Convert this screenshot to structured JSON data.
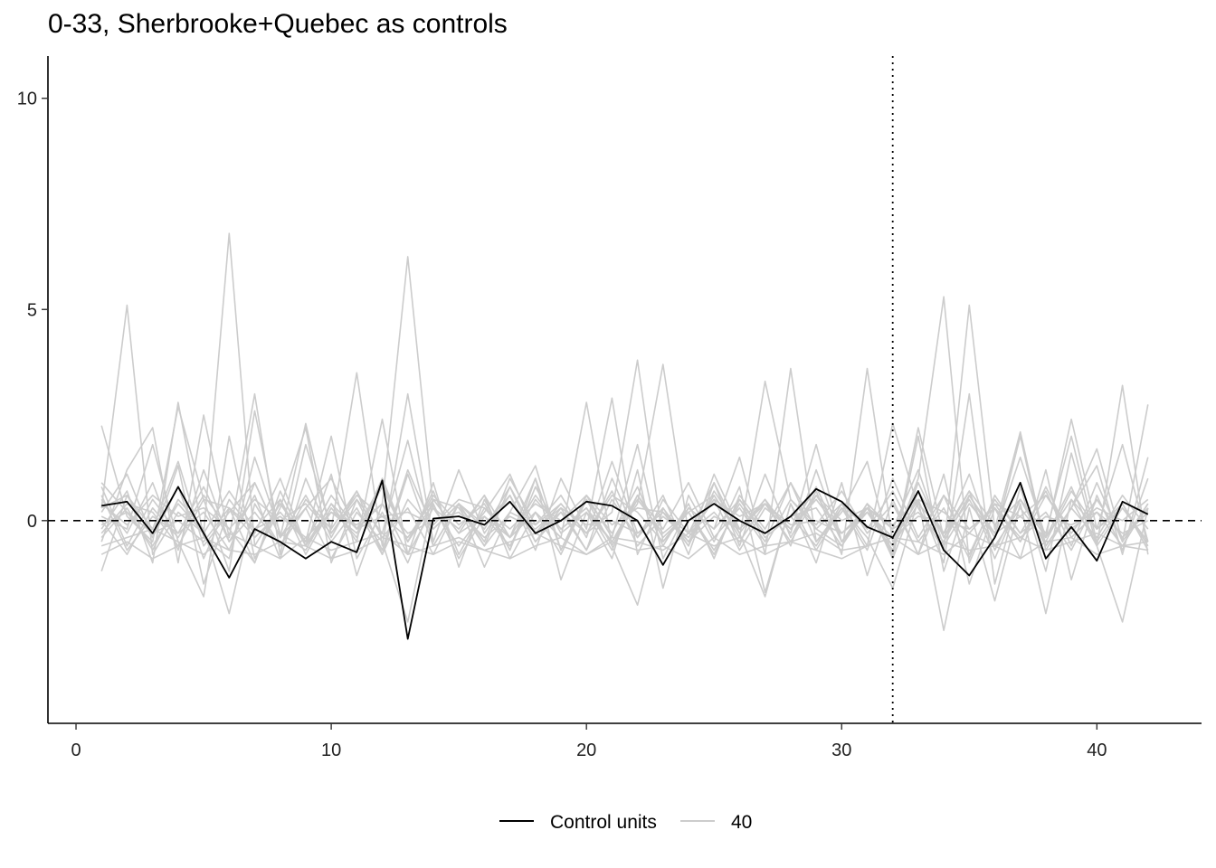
{
  "chart_data": {
    "type": "line",
    "title": "0-33, Sherbrooke+Quebec as controls",
    "xlabel": "",
    "ylabel": "",
    "xlim": [
      -1.1,
      44.1
    ],
    "ylim": [
      -4.8,
      11
    ],
    "x_ticks": [
      0,
      10,
      20,
      30,
      40
    ],
    "y_ticks": [
      0,
      5,
      10
    ],
    "reference_lines": {
      "horizontal_dashed_y": 0,
      "vertical_dotted_x": 32
    },
    "grid": false,
    "legend": {
      "position": "bottom",
      "entries": [
        {
          "label": "Control units",
          "color": "#000000"
        },
        {
          "label": "40",
          "color": "#cccccc"
        }
      ]
    },
    "x": [
      1,
      2,
      3,
      4,
      5,
      6,
      7,
      8,
      9,
      10,
      11,
      12,
      13,
      14,
      15,
      16,
      17,
      18,
      19,
      20,
      21,
      22,
      23,
      24,
      25,
      26,
      27,
      28,
      29,
      30,
      31,
      32,
      33,
      34,
      35,
      36,
      37,
      38,
      39,
      40,
      41,
      42
    ],
    "series": [
      {
        "name": "Control units",
        "color": "#000000",
        "values": [
          0.35,
          0.45,
          -0.3,
          0.8,
          -0.3,
          -1.35,
          -0.2,
          -0.5,
          -0.9,
          -0.5,
          -0.75,
          0.95,
          -2.8,
          0.05,
          0.1,
          -0.1,
          0.45,
          -0.3,
          0.0,
          0.45,
          0.35,
          0.0,
          -1.05,
          0.0,
          0.4,
          0.0,
          -0.3,
          0.1,
          0.75,
          0.45,
          -0.15,
          -0.4,
          0.7,
          -0.7,
          -1.3,
          -0.4,
          0.9,
          -0.9,
          -0.15,
          -0.95,
          0.45,
          0.15
        ]
      },
      {
        "color": "#cccccc",
        "values": [
          2.25,
          0.1,
          -0.5,
          2.7,
          0.5,
          -1.2,
          2.6,
          -0.4,
          0.3,
          1.0,
          -0.2,
          0.4,
          6.25,
          0.3,
          -0.6,
          0.2,
          1.1,
          -0.3,
          0.4,
          -0.3,
          0.2,
          3.8,
          -0.5,
          0.2,
          0.6,
          -0.4,
          3.3,
          0.5,
          -0.2,
          0.4,
          -0.6,
          2.3,
          0.3,
          -0.7,
          5.1,
          -0.2,
          2.1,
          -0.6,
          0.3,
          1.7,
          -0.5,
          2.75
        ]
      },
      {
        "color": "#cccccc",
        "values": [
          0.3,
          5.1,
          -0.8,
          0.2,
          -0.3,
          6.8,
          -0.6,
          0.4,
          -0.5,
          2.0,
          -0.9,
          0.2,
          -1.0,
          0.5,
          -0.3,
          0.1,
          -0.4,
          0.6,
          -0.2,
          0.3,
          -0.5,
          0.4,
          3.7,
          -0.3,
          0.2,
          -0.5,
          0.4,
          -0.2,
          0.5,
          -0.3,
          0.3,
          -0.6,
          1.0,
          5.3,
          -1.0,
          0.4,
          -0.5,
          0.6,
          -0.3,
          0.5,
          -0.4,
          0.3
        ]
      },
      {
        "color": "#cccccc",
        "values": [
          -0.5,
          1.2,
          2.2,
          -1.0,
          2.5,
          -0.4,
          3.0,
          -0.8,
          1.8,
          -0.2,
          3.5,
          -0.6,
          3.0,
          -0.5,
          1.2,
          -0.3,
          0.6,
          -0.7,
          1.0,
          -0.2,
          2.9,
          -0.8,
          0.5,
          -0.3,
          0.9,
          -0.6,
          1.1,
          -0.4,
          0.7,
          -0.8,
          3.6,
          -0.5,
          0.5,
          -1.0,
          3.0,
          -1.5,
          0.8,
          -1.2,
          1.6,
          -0.6,
          3.2,
          -0.8
        ]
      },
      {
        "color": "#cccccc",
        "values": [
          0.8,
          -0.6,
          0.5,
          -0.3,
          0.2,
          -0.7,
          0.9,
          -0.4,
          0.6,
          -0.5,
          0.3,
          -0.8,
          0.5,
          -0.2,
          0.4,
          -0.6,
          0.8,
          -0.3,
          0.2,
          -0.7,
          0.5,
          -0.4,
          0.3,
          -0.6,
          0.7,
          -0.2,
          0.4,
          -0.5,
          0.6,
          -0.3,
          0.2,
          -0.7,
          0.9,
          -0.4,
          0.5,
          -0.6,
          0.3,
          -0.5,
          0.7,
          -0.2,
          0.4,
          -0.6
        ]
      },
      {
        "color": "#cccccc",
        "values": [
          -1.2,
          0.6,
          -0.4,
          1.3,
          -1.5,
          0.3,
          -1.0,
          0.7,
          -0.6,
          1.1,
          -1.3,
          0.4,
          -0.8,
          0.9,
          -1.1,
          0.5,
          -0.7,
          1.0,
          -1.4,
          0.2,
          -0.9,
          1.2,
          -1.6,
          0.6,
          -0.5,
          0.8,
          -1.7,
          0.4,
          -1.0,
          0.9,
          -1.3,
          0.5,
          -0.8,
          1.1,
          -1.5,
          0.3,
          -0.9,
          1.2,
          -1.4,
          0.6,
          -0.7,
          1.0
        ]
      },
      {
        "color": "#cccccc",
        "values": [
          0.1,
          -0.2,
          1.8,
          -0.5,
          -1.8,
          2.0,
          -0.9,
          0.3,
          2.2,
          -1.0,
          0.5,
          -0.3,
          1.9,
          -0.6,
          0.4,
          -1.1,
          0.2,
          1.3,
          -0.7,
          0.6,
          -0.4,
          1.8,
          -0.9,
          0.3,
          -0.2,
          1.5,
          -0.8,
          3.6,
          -0.5,
          0.2,
          1.4,
          -0.9,
          2.0,
          -1.2,
          0.6,
          -0.4,
          2.0,
          -0.7,
          0.3,
          1.3,
          -0.8,
          1.5
        ]
      },
      {
        "color": "#cccccc",
        "values": [
          -0.6,
          -0.4,
          -0.2,
          -0.5,
          -0.8,
          -0.3,
          -0.6,
          -0.9,
          -0.4,
          -0.7,
          -0.5,
          -0.3,
          -0.8,
          -0.6,
          -0.4,
          -0.7,
          -0.5,
          -0.3,
          -0.6,
          -0.8,
          -0.4,
          -0.5,
          -0.7,
          -0.3,
          -0.6,
          -0.4,
          -0.8,
          -0.5,
          -0.3,
          -0.7,
          -0.6,
          -0.4,
          -0.5,
          -0.8,
          -0.3,
          -0.6,
          -0.4,
          -0.7,
          -0.5,
          -0.3,
          -0.6,
          -0.5
        ]
      },
      {
        "color": "#cccccc",
        "values": [
          0.5,
          -0.3,
          0.9,
          -0.7,
          1.2,
          -0.5,
          0.6,
          -0.9,
          1.0,
          -0.4,
          0.7,
          -0.8,
          1.1,
          -0.6,
          0.4,
          -0.2,
          0.8,
          -0.5,
          0.3,
          -0.7,
          1.0,
          -0.4,
          0.6,
          -0.8,
          0.9,
          -0.3,
          0.5,
          -0.6,
          1.2,
          -0.5,
          0.4,
          -0.9,
          0.7,
          -0.3,
          1.1,
          -0.7,
          0.5,
          -0.4,
          0.8,
          -0.6,
          0.3,
          -0.5
        ]
      },
      {
        "color": "#cccccc",
        "values": [
          -0.2,
          0.7,
          -1.0,
          2.8,
          -0.4,
          -0.9,
          1.5,
          -0.3,
          -0.7,
          0.4,
          -0.5,
          2.4,
          -0.8,
          0.3,
          -0.2,
          0.6,
          -0.9,
          0.2,
          -0.4,
          2.8,
          -0.6,
          0.5,
          -0.3,
          0.2,
          -0.7,
          0.4,
          -0.5,
          0.9,
          -0.2,
          -0.6,
          0.3,
          -0.8,
          2.2,
          -0.4,
          0.7,
          -0.9,
          0.5,
          -0.3,
          2.0,
          -0.5,
          0.4,
          -0.7
        ]
      },
      {
        "color": "#cccccc",
        "values": [
          0.0,
          -0.8,
          0.3,
          -0.4,
          0.6,
          -0.2,
          -1.0,
          0.5,
          -0.6,
          0.2,
          -0.3,
          0.8,
          -0.5,
          0.4,
          -0.9,
          0.1,
          -0.6,
          0.5,
          -0.2,
          0.3,
          -0.7,
          0.6,
          -0.4,
          0.2,
          -0.8,
          0.5,
          -0.3,
          0.1,
          -0.6,
          0.4,
          -0.2,
          0.7,
          -0.5,
          0.3,
          -0.9,
          0.6,
          -0.3,
          0.2,
          -0.7,
          0.5,
          -0.4,
          0.2
        ]
      },
      {
        "color": "#cccccc",
        "values": [
          0.9,
          0.2,
          -0.6,
          0.4,
          -0.3,
          0.7,
          -0.2,
          0.5,
          -0.8,
          0.3,
          -0.4,
          1.0,
          -0.5,
          0.6,
          -0.1,
          0.4,
          -0.7,
          0.8,
          -0.3,
          0.2,
          -0.5,
          0.6,
          -0.2,
          0.9,
          -0.4,
          0.3,
          -0.6,
          0.5,
          -0.1,
          0.7,
          -0.3,
          0.4,
          -0.8,
          0.6,
          -0.2,
          0.3,
          -0.5,
          0.8,
          -0.4,
          0.2,
          -0.6,
          0.4
        ]
      },
      {
        "color": "#cccccc",
        "values": [
          -0.4,
          0.3,
          -0.7,
          0.5,
          -0.2,
          -2.2,
          0.4,
          -0.6,
          0.3,
          -0.9,
          0.2,
          -0.5,
          -2.4,
          0.5,
          -0.3,
          0.6,
          -0.4,
          0.2,
          -0.8,
          0.5,
          -0.6,
          -2.0,
          0.3,
          -0.5,
          0.6,
          -0.3,
          -1.8,
          0.4,
          -0.7,
          0.3,
          -0.4,
          -1.6,
          0.5,
          -2.6,
          0.3,
          -1.9,
          0.4,
          -2.2,
          0.5,
          -0.6,
          -2.4,
          0.3
        ]
      },
      {
        "color": "#cccccc",
        "values": [
          0.2,
          1.1,
          -0.4,
          0.8,
          -0.9,
          0.5,
          -0.3,
          1.0,
          -0.6,
          0.4,
          -0.2,
          0.9,
          -0.5,
          0.7,
          -0.8,
          0.3,
          -0.4,
          1.0,
          -0.7,
          0.5,
          -0.3,
          0.8,
          -0.6,
          0.4,
          -0.9,
          0.6,
          -0.2,
          0.9,
          -0.5,
          0.3,
          -0.7,
          1.0,
          -0.4,
          0.6,
          -0.8,
          0.5,
          -0.3,
          0.7,
          -0.6,
          0.9,
          -0.5,
          0.4
        ]
      },
      {
        "color": "#cccccc",
        "values": [
          -0.8,
          -0.5,
          -0.9,
          -0.6,
          -0.4,
          -0.7,
          -0.8,
          -0.5,
          -0.6,
          -0.9,
          -0.7,
          -0.4,
          -0.6,
          -0.8,
          -0.5,
          -0.7,
          -0.9,
          -0.6,
          -0.4,
          -0.8,
          -0.5,
          -0.7,
          -0.6,
          -0.9,
          -0.4,
          -0.8,
          -0.6,
          -0.5,
          -0.7,
          -0.9,
          -0.6,
          -0.4,
          -0.8,
          -0.5,
          -0.7,
          -0.6,
          -0.9,
          -0.5,
          -0.4,
          -0.8,
          -0.6,
          -0.7
        ]
      },
      {
        "color": "#cccccc",
        "values": [
          0.4,
          -0.1,
          0.6,
          0.1,
          0.3,
          -0.2,
          0.5,
          0.0,
          0.4,
          -0.3,
          0.6,
          0.1,
          0.2,
          -0.1,
          0.5,
          0.3,
          -0.2,
          0.4,
          0.0,
          0.6,
          -0.1,
          0.3,
          0.2,
          -0.3,
          0.5,
          0.1,
          0.4,
          -0.2,
          0.6,
          0.0,
          0.3,
          -0.1,
          0.5,
          0.2,
          -0.3,
          0.4,
          0.1,
          0.6,
          -0.2,
          0.3,
          0.0,
          0.5
        ]
      },
      {
        "color": "#cccccc",
        "values": [
          -0.3,
          0.4,
          0.2,
          -0.6,
          0.5,
          0.3,
          -0.4,
          0.2,
          -0.5,
          0.6,
          -0.2,
          0.1,
          -0.4,
          0.5,
          0.3,
          -0.6,
          0.2,
          -0.1,
          0.4,
          -0.3,
          0.6,
          0.2,
          -0.5,
          0.3,
          -0.2,
          0.5,
          -0.4,
          0.1,
          0.3,
          -0.6,
          0.4,
          -0.2,
          0.2,
          -0.5,
          0.6,
          -0.3,
          0.1,
          -0.4,
          0.5,
          -0.2,
          0.3,
          -0.5
        ]
      },
      {
        "color": "#cccccc",
        "values": [
          0.6,
          -0.7,
          0.1,
          -0.3,
          0.8,
          -0.5,
          0.2,
          -0.6,
          0.5,
          -0.2,
          0.7,
          -0.4,
          0.3,
          -0.8,
          0.4,
          -0.1,
          0.6,
          -0.5,
          0.2,
          -0.3,
          0.7,
          -0.6,
          0.1,
          -0.4,
          0.5,
          -0.7,
          0.3,
          -0.2,
          0.8,
          -0.5,
          0.2,
          -0.6,
          0.4,
          -0.3,
          0.7,
          -0.1,
          0.5,
          -0.6,
          0.3,
          -0.4,
          0.6,
          -0.2
        ]
      },
      {
        "color": "#cccccc",
        "values": [
          -0.1,
          0.2,
          -0.3,
          0.0,
          -0.5,
          0.3,
          -0.2,
          0.1,
          -0.4,
          0.2,
          -0.1,
          0.4,
          -0.3,
          0.0,
          0.2,
          -0.4,
          0.1,
          -0.2,
          0.3,
          -0.1,
          0.0,
          -0.3,
          0.2,
          -0.5,
          0.1,
          -0.2,
          0.4,
          -0.1,
          0.0,
          -0.3,
          0.2,
          -0.4,
          0.1,
          0.0,
          -0.2,
          0.3,
          -0.4,
          0.1,
          -0.1,
          0.2,
          -0.3,
          0.0
        ]
      },
      {
        "color": "#cccccc",
        "values": [
          0.3,
          0.6,
          -0.2,
          1.4,
          -0.6,
          0.2,
          0.9,
          -0.4,
          2.3,
          -0.3,
          0.5,
          -0.7,
          1.2,
          -0.2,
          0.4,
          -0.5,
          1.0,
          -0.1,
          0.6,
          -0.4,
          1.4,
          -0.3,
          0.2,
          -0.6,
          1.1,
          -0.2,
          0.5,
          -0.3,
          1.8,
          -0.5,
          0.3,
          -0.2,
          1.2,
          -0.6,
          0.4,
          -0.3,
          1.5,
          -0.4,
          2.4,
          -0.2,
          1.8,
          -0.5
        ]
      }
    ]
  }
}
